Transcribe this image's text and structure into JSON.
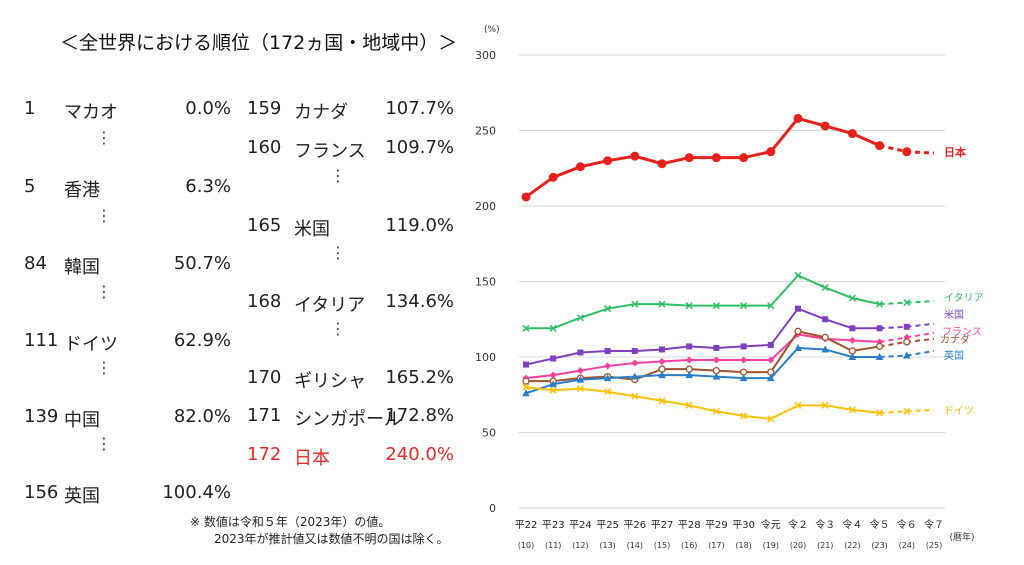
{
  "title": "＜全世界における順位（172ヵ国・地域中）＞",
  "ranking_left": [
    {
      "rank": "1",
      "name": "マカオ",
      "value": "0.0%"
    },
    {
      "rank": "5",
      "name": "香港",
      "value": "6.3%"
    },
    {
      "rank": "84",
      "name": "韓国",
      "value": "50.7%"
    },
    {
      "rank": "111",
      "name": "ドイツ",
      "value": "62.9%"
    },
    {
      "rank": "139",
      "name": "中国",
      "value": "82.0%"
    },
    {
      "rank": "156",
      "name": "英国",
      "value": "100.4%"
    }
  ],
  "ranking_right": [
    {
      "rank": "159",
      "name": "カナダ",
      "value": "107.7%"
    },
    {
      "rank": "160",
      "name": "フランス",
      "value": "109.7%"
    },
    {
      "rank": "165",
      "name": "米国",
      "value": "119.0%"
    },
    {
      "rank": "168",
      "name": "イタリア",
      "value": "134.6%"
    },
    {
      "rank": "170",
      "name": "ギリシャ",
      "value": "165.2%"
    },
    {
      "rank": "171",
      "name": "シンガポール",
      "value": "172.8%"
    },
    {
      "rank": "172",
      "name": "日本",
      "value": "240.0%"
    }
  ],
  "ellipsis": "⋮",
  "note": {
    "line1": "※ 数値は令和５年（2023年）の値。",
    "line2": "2023年が推計値又は数値不明の国は除く。"
  },
  "chart_data": {
    "type": "line",
    "ylabel": "(%)",
    "ylim": [
      0,
      300
    ],
    "yticks": [
      "0",
      "50",
      "100",
      "150",
      "200",
      "250",
      "300"
    ],
    "x_era": [
      "平22",
      "平23",
      "平24",
      "平25",
      "平26",
      "平27",
      "平28",
      "平29",
      "平30",
      "令元",
      "令２",
      "令３",
      "令４",
      "令５",
      "令６",
      "令７"
    ],
    "x_year": [
      "(10)",
      "(11)",
      "(12)",
      "(13)",
      "(14)",
      "(15)",
      "(16)",
      "(17)",
      "(18)",
      "(19)",
      "(20)",
      "(21)",
      "(22)",
      "(23)",
      "(24)",
      "(25)"
    ],
    "x_unit": "(暦年)",
    "projection_start_index": 13,
    "series": [
      {
        "name": "日本",
        "color": "#e8201d",
        "marker": "circle",
        "values": [
          206,
          219,
          226,
          230,
          233,
          228,
          232,
          232,
          232,
          236,
          258,
          253,
          248,
          240,
          236,
          235
        ]
      },
      {
        "name": "イタリア",
        "color": "#2fbf62",
        "marker": "x",
        "values": [
          119,
          119,
          126,
          132,
          135,
          135,
          134,
          134,
          134,
          134,
          154,
          146,
          139,
          135,
          136,
          137
        ]
      },
      {
        "name": "米国",
        "color": "#7f3fbf",
        "marker": "square",
        "values": [
          95,
          99,
          103,
          104,
          104,
          105,
          107,
          106,
          107,
          108,
          132,
          125,
          119,
          119,
          120,
          122
        ]
      },
      {
        "name": "フランス",
        "color": "#ff3fa0",
        "marker": "diamond",
        "values": [
          86,
          88,
          91,
          94,
          96,
          97,
          98,
          98,
          98,
          98,
          115,
          112,
          111,
          110,
          113,
          116
        ]
      },
      {
        "name": "カナダ",
        "color": "#a0522d",
        "marker": "circle-open",
        "values": [
          84,
          84,
          86,
          87,
          85,
          92,
          92,
          91,
          90,
          90,
          117,
          113,
          104,
          107,
          110,
          112
        ]
      },
      {
        "name": "英国",
        "color": "#2a7ec8",
        "marker": "triangle",
        "values": [
          76,
          82,
          85,
          86,
          87,
          88,
          88,
          87,
          86,
          86,
          106,
          105,
          100,
          100,
          101,
          104
        ]
      },
      {
        "name": "ドイツ",
        "color": "#ffc000",
        "marker": "x",
        "values": [
          80,
          78,
          79,
          77,
          74,
          71,
          68,
          64,
          61,
          59,
          68,
          68,
          65,
          63,
          64,
          65
        ]
      }
    ]
  }
}
